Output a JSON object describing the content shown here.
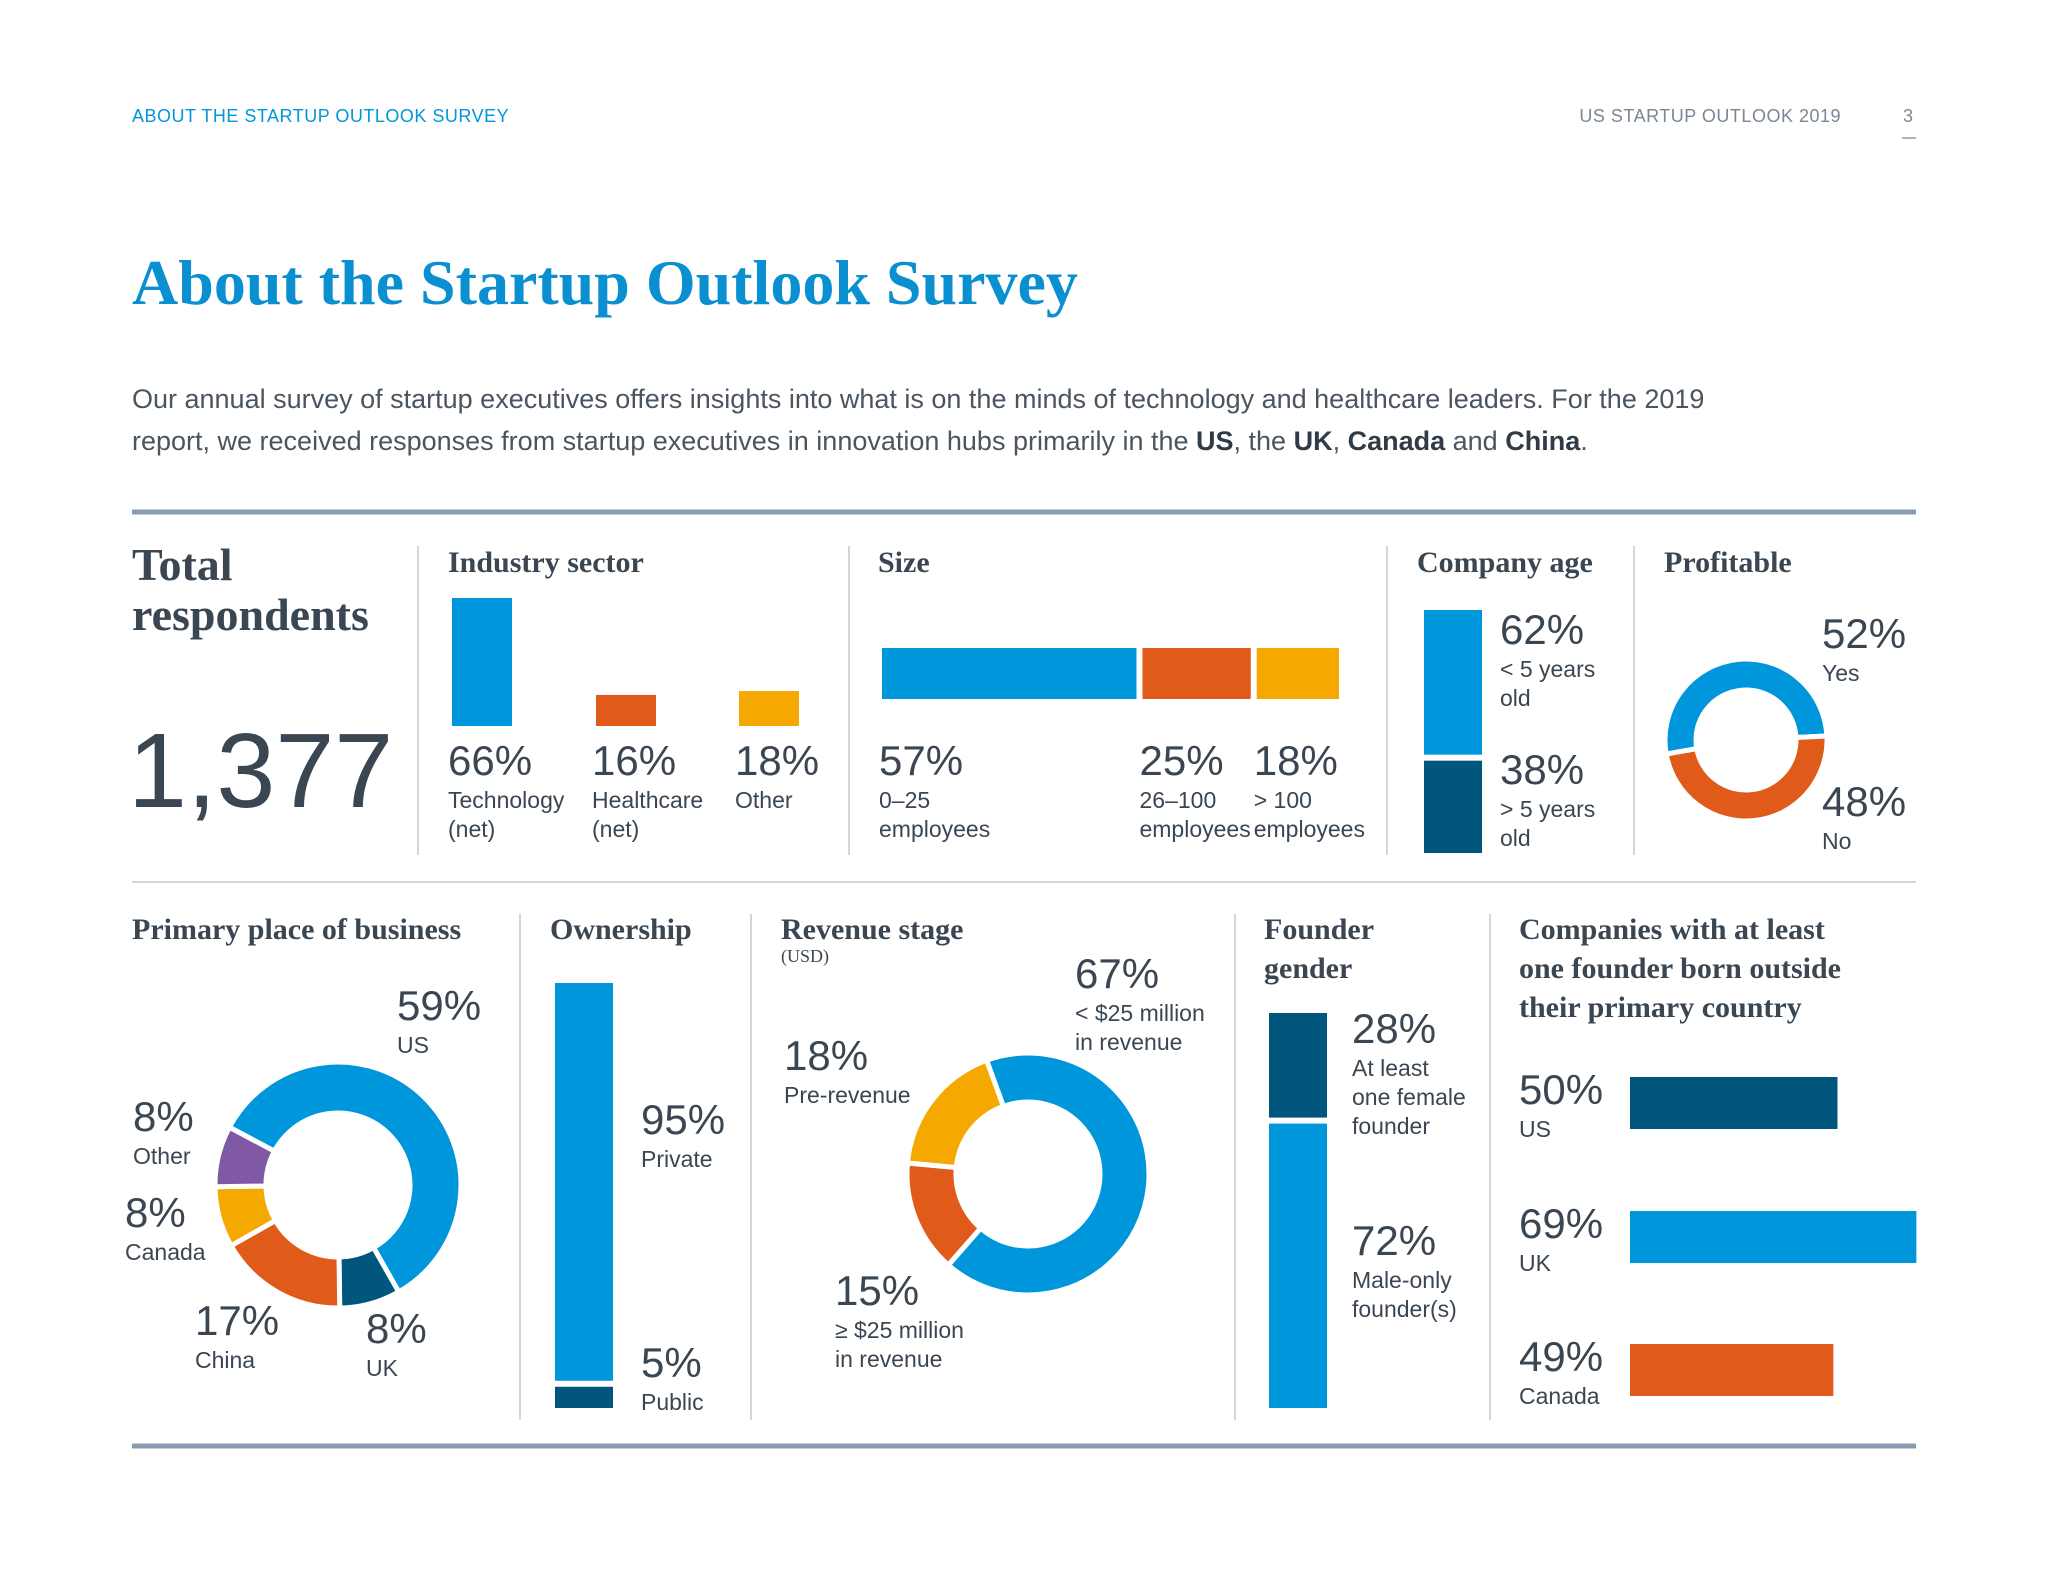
{
  "header": {
    "left": "ABOUT THE STARTUP OUTLOOK SURVEY",
    "right": "US STARTUP OUTLOOK 2019",
    "page": "3"
  },
  "title": "About the Startup Outlook Survey",
  "intro": [
    {
      "text": "Our annual survey of startup executives offers insights into what is on the minds of technology and healthcare leaders. For the 2019 report, we received responses from startup executives in innovation hubs primarily in the ",
      "bold": false
    },
    {
      "text": "US",
      "bold": true
    },
    {
      "text": ", the ",
      "bold": false
    },
    {
      "text": "UK",
      "bold": true
    },
    {
      "text": ", ",
      "bold": false
    },
    {
      "text": "Canada",
      "bold": true
    },
    {
      "text": " and ",
      "bold": false
    },
    {
      "text": "China",
      "bold": true
    },
    {
      "text": ".",
      "bold": false
    }
  ],
  "total": {
    "title": "Total respondents",
    "value": "1,377"
  },
  "chart_data": [
    {
      "type": "bar",
      "orientation": "vertical",
      "title": "Industry sector",
      "categories": [
        "Technology\n(net)",
        "Healthcare\n(net)",
        "Other"
      ],
      "values": [
        66,
        16,
        18
      ],
      "value_labels": [
        "66%",
        "16%",
        "18%"
      ],
      "colors": [
        "#0096db",
        "#e05a1a",
        "#f5a800"
      ]
    },
    {
      "type": "stacked-bar",
      "orientation": "horizontal",
      "title": "Size",
      "categories": [
        "0–25\nemployees",
        "26–100\nemployees",
        "> 100\nemployees"
      ],
      "values": [
        57,
        25,
        18
      ],
      "value_labels": [
        "57%",
        "25%",
        "18%"
      ],
      "colors": [
        "#0096db",
        "#e05a1a",
        "#f5a800"
      ]
    },
    {
      "type": "stacked-bar",
      "orientation": "vertical",
      "title": "Company age",
      "categories": [
        "< 5 years\nold",
        "> 5 years\nold"
      ],
      "values": [
        62,
        38
      ],
      "value_labels": [
        "62%",
        "38%"
      ],
      "colors": [
        "#0096db",
        "#00567d"
      ]
    },
    {
      "type": "donut",
      "title": "Profitable",
      "categories": [
        "Yes",
        "No"
      ],
      "values": [
        52,
        48
      ],
      "value_labels": [
        "52%",
        "48%"
      ],
      "colors": [
        "#0096db",
        "#e05a1a"
      ]
    },
    {
      "type": "donut",
      "title": "Primary place of business",
      "categories": [
        "US",
        "UK",
        "China",
        "Canada",
        "Other"
      ],
      "values": [
        59,
        8,
        17,
        8,
        8
      ],
      "value_labels": [
        "59%",
        "8%",
        "17%",
        "8%",
        "8%"
      ],
      "colors": [
        "#0096db",
        "#00567d",
        "#e05a1a",
        "#f5a800",
        "#8059a5"
      ]
    },
    {
      "type": "stacked-bar",
      "orientation": "vertical",
      "title": "Ownership",
      "categories": [
        "Private",
        "Public"
      ],
      "values": [
        95,
        5
      ],
      "value_labels": [
        "95%",
        "5%"
      ],
      "colors": [
        "#0096db",
        "#00567d"
      ]
    },
    {
      "type": "donut",
      "title": "Revenue stage",
      "subtitle": "(USD)",
      "categories": [
        "< $25 million\nin revenue",
        "≥ $25 million\nin revenue",
        "Pre-revenue"
      ],
      "values": [
        67,
        15,
        18
      ],
      "value_labels": [
        "67%",
        "15%",
        "18%"
      ],
      "colors": [
        "#0096db",
        "#e05a1a",
        "#f5a800"
      ]
    },
    {
      "type": "stacked-bar",
      "orientation": "vertical",
      "title": "Founder gender",
      "categories": [
        "At least\none female\nfounder",
        "Male-only\nfounder(s)"
      ],
      "values": [
        28,
        72
      ],
      "value_labels": [
        "28%",
        "72%"
      ],
      "colors": [
        "#00567d",
        "#0096db"
      ]
    },
    {
      "type": "bar",
      "orientation": "horizontal",
      "title": "Companies with at least one founder born outside their primary country",
      "categories": [
        "US",
        "UK",
        "Canada"
      ],
      "values": [
        50,
        69,
        49
      ],
      "value_labels": [
        "50%",
        "69%",
        "49%"
      ],
      "colors": [
        "#00567d",
        "#0096db",
        "#e05a1a"
      ]
    }
  ]
}
